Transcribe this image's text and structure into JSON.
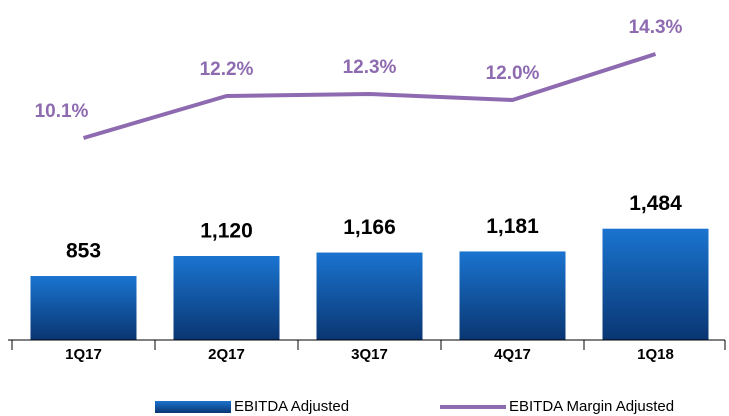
{
  "chart_data": {
    "type": "bar_line",
    "categories": [
      "1Q17",
      "2Q17",
      "3Q17",
      "4Q17",
      "1Q18"
    ],
    "series": [
      {
        "name": "EBITDA Adjusted",
        "color": "#0f4f9e",
        "values": [
          853,
          1120,
          1166,
          1181,
          1484
        ],
        "value_labels": [
          "853",
          "1,120",
          "1,166",
          "1,181",
          "1,484"
        ]
      },
      {
        "name": "EBITDA Margin Adjusted",
        "color": "#8e6bb0",
        "axis": "y2",
        "values": [
          10.1,
          12.2,
          12.3,
          12.0,
          14.3
        ],
        "value_labels": [
          "10.1%",
          "12.2%",
          "12.3%",
          "12.0%",
          "14.3%"
        ]
      }
    ],
    "ylim": [
      0,
      4000
    ],
    "y2lim": [
      0,
      15
    ],
    "legend": "bottom"
  }
}
